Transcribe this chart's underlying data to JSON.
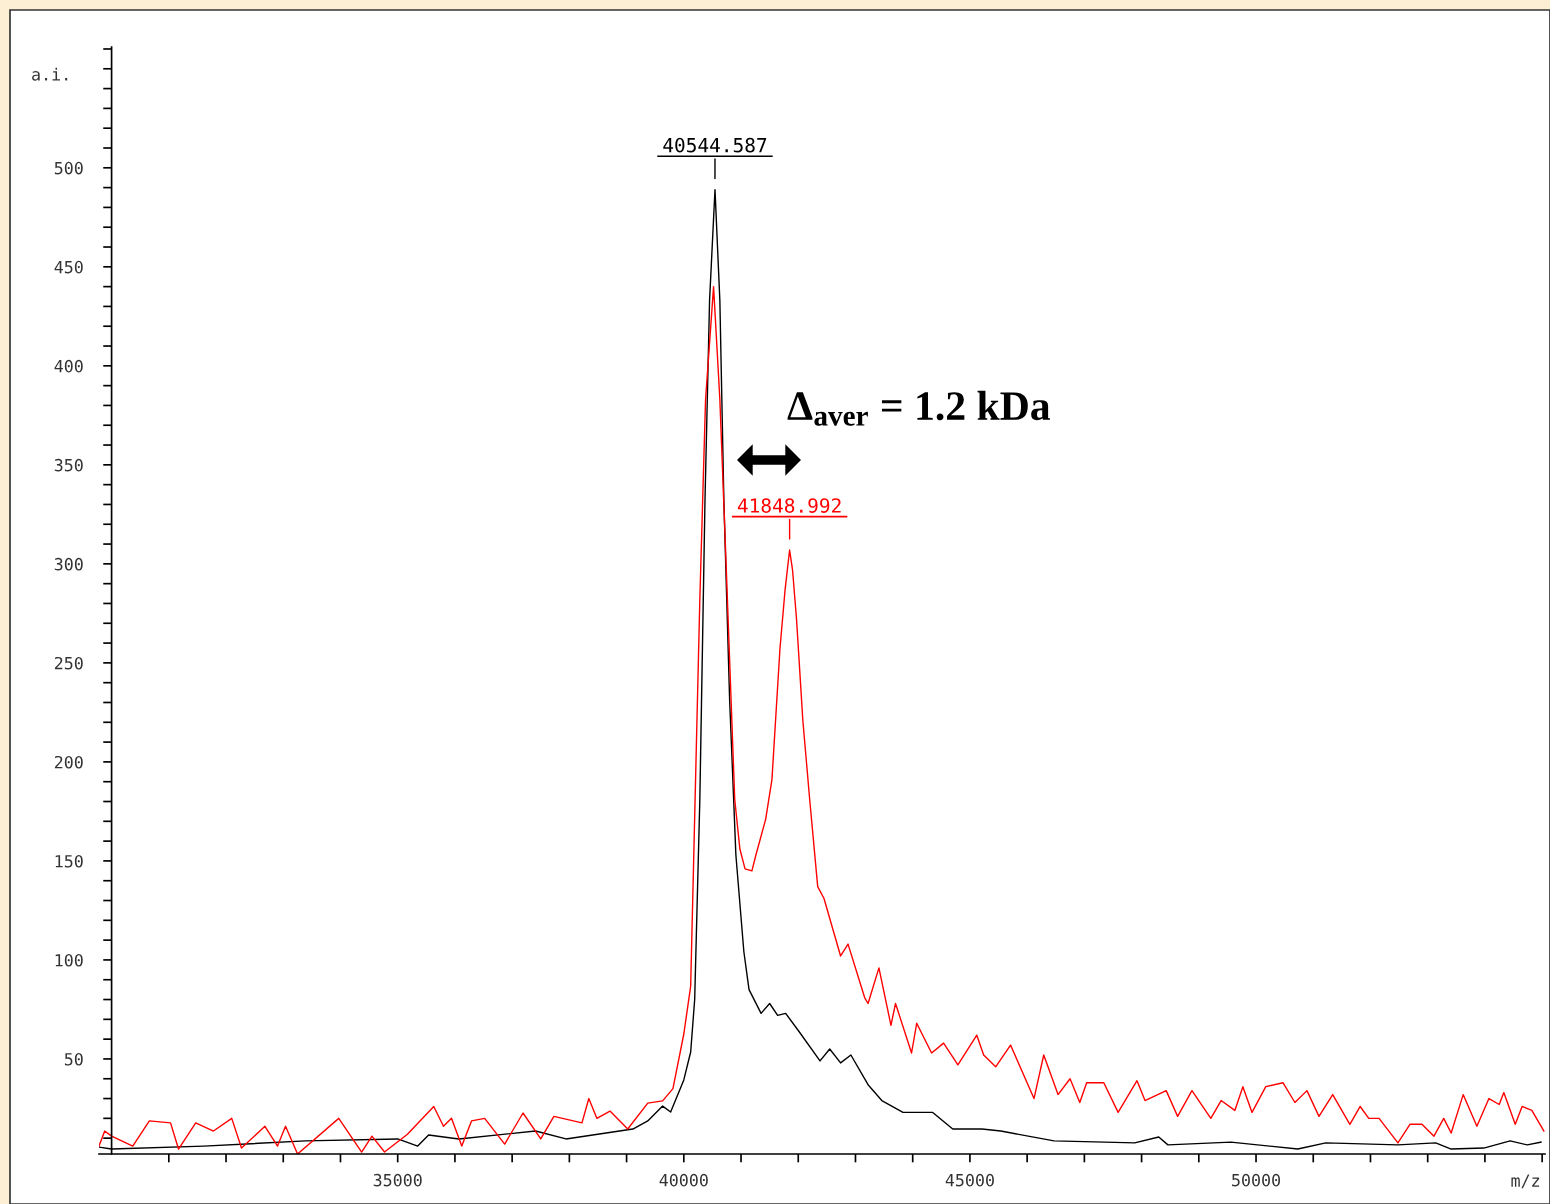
{
  "chart_data": {
    "type": "line",
    "xlabel": "m/z",
    "ylabel": "a.i.",
    "xlim": [
      29780,
      55050
    ],
    "ylim": [
      2,
      561
    ],
    "xticks": [
      {
        "value": 31000,
        "label": null
      },
      {
        "value": 32000,
        "label": null
      },
      {
        "value": 33000,
        "label": null
      },
      {
        "value": 34000,
        "label": null
      },
      35000,
      {
        "value": 36000,
        "label": null
      },
      {
        "value": 37000,
        "label": null
      },
      {
        "value": 38000,
        "label": null
      },
      {
        "value": 39000,
        "label": null
      },
      40000,
      {
        "value": 41000,
        "label": null
      },
      {
        "value": 42000,
        "label": null
      },
      {
        "value": 43000,
        "label": null
      },
      {
        "value": 44000,
        "label": null
      },
      45000,
      {
        "value": 46000,
        "label": null
      },
      {
        "value": 47000,
        "label": null
      },
      {
        "value": 48000,
        "label": null
      },
      {
        "value": 49000,
        "label": null
      },
      50000,
      {
        "value": 51000,
        "label": null
      },
      {
        "value": 52000,
        "label": null
      },
      {
        "value": 53000,
        "label": null
      },
      {
        "value": 54000,
        "label": null
      },
      {
        "value": 55000,
        "label": null
      }
    ],
    "yticks": [
      {
        "value": 10,
        "label": null
      },
      {
        "value": 20,
        "label": null
      },
      {
        "value": 30,
        "label": null
      },
      {
        "value": 40,
        "label": null
      },
      50,
      {
        "value": 60,
        "label": null
      },
      {
        "value": 70,
        "label": null
      },
      {
        "value": 80,
        "label": null
      },
      {
        "value": 90,
        "label": null
      },
      100,
      {
        "value": 110,
        "label": null
      },
      {
        "value": 120,
        "label": null
      },
      {
        "value": 130,
        "label": null
      },
      {
        "value": 140,
        "label": null
      },
      150,
      {
        "value": 160,
        "label": null
      },
      {
        "value": 170,
        "label": null
      },
      {
        "value": 180,
        "label": null
      },
      {
        "value": 190,
        "label": null
      },
      200,
      {
        "value": 210,
        "label": null
      },
      {
        "value": 220,
        "label": null
      },
      {
        "value": 230,
        "label": null
      },
      {
        "value": 240,
        "label": null
      },
      250,
      {
        "value": 260,
        "label": null
      },
      {
        "value": 270,
        "label": null
      },
      {
        "value": 280,
        "label": null
      },
      {
        "value": 290,
        "label": null
      },
      300,
      {
        "value": 310,
        "label": null
      },
      {
        "value": 320,
        "label": null
      },
      {
        "value": 330,
        "label": null
      },
      {
        "value": 340,
        "label": null
      },
      350,
      {
        "value": 360,
        "label": null
      },
      {
        "value": 370,
        "label": null
      },
      {
        "value": 380,
        "label": null
      },
      {
        "value": 390,
        "label": null
      },
      400,
      {
        "value": 410,
        "label": null
      },
      {
        "value": 420,
        "label": null
      },
      {
        "value": 430,
        "label": null
      },
      {
        "value": 440,
        "label": null
      },
      450,
      {
        "value": 460,
        "label": null
      },
      {
        "value": 470,
        "label": null
      },
      {
        "value": 480,
        "label": null
      },
      {
        "value": 490,
        "label": null
      },
      500,
      {
        "value": 510,
        "label": null
      },
      {
        "value": 520,
        "label": null
      },
      {
        "value": 530,
        "label": null
      },
      {
        "value": 540,
        "label": null
      },
      {
        "value": 550,
        "label": null
      },
      {
        "value": 560,
        "label": null
      }
    ],
    "grid": false,
    "marker": "none",
    "line_style": "solid",
    "series": [
      {
        "color": "#000000",
        "x": [
          29780,
          30000,
          31610,
          33390,
          35000,
          35350,
          35540,
          36070,
          37410,
          37940,
          39110,
          39370,
          39630,
          39770,
          40000,
          40120,
          40190,
          40280,
          40370,
          40450,
          40545,
          40630,
          40700,
          40800,
          40910,
          41050,
          41140,
          41350,
          41500,
          41640,
          41780,
          42010,
          42380,
          42550,
          42740,
          42920,
          43220,
          43460,
          43830,
          44350,
          44700,
          45210,
          45540,
          46470,
          47880,
          48300,
          48460,
          49560,
          50730,
          51220,
          52480,
          53140,
          53410,
          53980,
          54440,
          54740,
          54980
        ],
        "values": [
          5.5,
          4.5,
          6,
          8.6,
          9.6,
          6,
          11.6,
          9.6,
          13.6,
          9.6,
          14.6,
          18.7,
          26.2,
          23.2,
          39.4,
          53.5,
          80,
          181,
          332,
          433,
          489,
          433,
          332,
          232,
          153,
          104,
          85,
          73,
          78,
          72,
          73,
          64,
          49,
          55,
          48,
          52,
          37,
          29,
          23,
          23,
          14.6,
          14.6,
          13.6,
          8.6,
          7.6,
          10.6,
          6.6,
          8,
          4.5,
          7.6,
          6.6,
          7.6,
          4.5,
          5,
          8.6,
          6.6,
          8
        ]
      },
      {
        "color": "#ff0000",
        "x": [
          29780,
          29880,
          30000,
          30370,
          30660,
          31030,
          31170,
          31470,
          31780,
          32100,
          32270,
          32680,
          32900,
          33040,
          33250,
          33970,
          34370,
          34550,
          34770,
          35170,
          35630,
          35800,
          35940,
          36120,
          36290,
          36520,
          36870,
          37190,
          37500,
          37730,
          38220,
          38340,
          38480,
          38710,
          39020,
          39370,
          39630,
          39810,
          40000,
          40120,
          40280,
          40380,
          40520,
          40630,
          40730,
          40890,
          40980,
          41070,
          41190,
          41260,
          41430,
          41540,
          41680,
          41770,
          41849,
          41900,
          41970,
          42080,
          42200,
          42340,
          42450,
          42600,
          42740,
          42870,
          43160,
          43220,
          43410,
          43620,
          43700,
          43980,
          44070,
          44330,
          44540,
          44790,
          45120,
          45240,
          45450,
          45710,
          46120,
          46290,
          46540,
          46750,
          46920,
          47040,
          47340,
          47590,
          47920,
          48060,
          48430,
          48630,
          48880,
          49210,
          49390,
          49630,
          49770,
          49930,
          50170,
          50470,
          50680,
          50890,
          51100,
          51340,
          51640,
          51820,
          51970,
          52150,
          52480,
          52690,
          52900,
          53110,
          53280,
          53410,
          53620,
          53860,
          54070,
          54250,
          54330,
          54530,
          54650,
          54820,
          55030
        ],
        "values": [
          6,
          13.6,
          11,
          6,
          18.7,
          17.7,
          4.5,
          17.7,
          13.6,
          20,
          5,
          16,
          6,
          16,
          2,
          20,
          3,
          11,
          3,
          12,
          26,
          16,
          20,
          6,
          18.7,
          20,
          7,
          22.7,
          9.6,
          21,
          17.7,
          30,
          20,
          23.7,
          14.6,
          27.7,
          28.8,
          35,
          62.6,
          86.8,
          282,
          383,
          440,
          383,
          307,
          181,
          156,
          146,
          145,
          153,
          171,
          191,
          257,
          287,
          307,
          297,
          272,
          221,
          181,
          137,
          131,
          116,
          102,
          108,
          81,
          78,
          96,
          67,
          78,
          53,
          68,
          53,
          58,
          47,
          62,
          52,
          46,
          57,
          30,
          52,
          32,
          40,
          28,
          38,
          38,
          23,
          39,
          29,
          34,
          21,
          34,
          20,
          29,
          24,
          36,
          23,
          36,
          38,
          28,
          34,
          21,
          32,
          17,
          26,
          20,
          20,
          7.6,
          17,
          17,
          11,
          20,
          12.6,
          32,
          16,
          30,
          27,
          33,
          17,
          26,
          24,
          13.6
        ]
      }
    ],
    "annotations": [
      {
        "text": "40544.587",
        "x": 40544.587,
        "y": 489
      },
      {
        "text": "41848.992",
        "x": 41848.992,
        "y": 307
      },
      "Δ$_{aver}$ = 1.2 kDa"
    ]
  }
}
